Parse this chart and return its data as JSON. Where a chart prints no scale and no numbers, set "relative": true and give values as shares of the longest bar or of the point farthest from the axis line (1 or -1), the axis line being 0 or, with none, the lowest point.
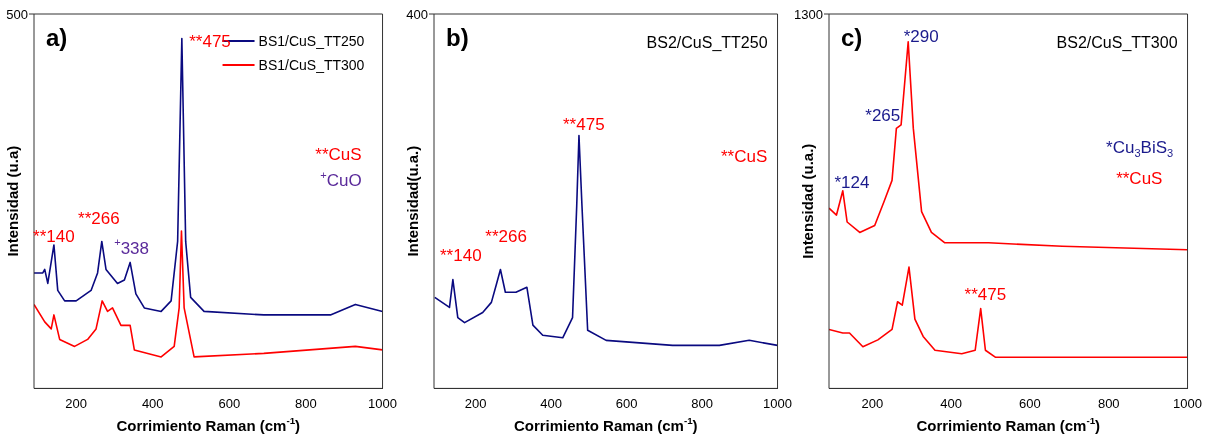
{
  "chart_data": [
    {
      "type": "line",
      "relative": true,
      "xlim": [
        90,
        1000
      ],
      "xticks": [
        200,
        400,
        600,
        800,
        1000
      ],
      "tick_labels": "x",
      "xlabel": "Corrimiento Raman (cm$^{-1}$)",
      "ylabel": "Intensidad (u.a)",
      "legend": "top right",
      "marker": "none",
      "series": [
        {
          "name": "BS1/CuS_TT250",
          "color": "#0a0a80",
          "x": [
            90,
            113,
            118,
            126,
            142,
            152,
            170,
            200,
            239,
            256,
            267,
            278,
            308,
            326,
            341,
            356,
            378,
            422,
            448,
            465,
            476,
            486,
            499,
            534,
            690,
            864,
            929,
            1000
          ],
          "values": [
            0.33,
            0.33,
            0.34,
            0.3,
            0.41,
            0.28,
            0.25,
            0.25,
            0.28,
            0.33,
            0.42,
            0.34,
            0.3,
            0.31,
            0.36,
            0.27,
            0.23,
            0.22,
            0.25,
            0.42,
            1.0,
            0.42,
            0.26,
            0.22,
            0.21,
            0.21,
            0.24,
            0.22
          ]
        },
        {
          "name": "BS1/CuS_TT300",
          "color": "#ff0000",
          "x": [
            90,
            118,
            135,
            142,
            157,
            196,
            230,
            252,
            268,
            282,
            295,
            317,
            341,
            352,
            387,
            422,
            456,
            469,
            475,
            482,
            508,
            690,
            929,
            1000
          ],
          "values": [
            0.24,
            0.19,
            0.17,
            0.21,
            0.14,
            0.12,
            0.14,
            0.17,
            0.25,
            0.22,
            0.23,
            0.18,
            0.18,
            0.11,
            0.1,
            0.09,
            0.12,
            0.23,
            0.45,
            0.23,
            0.09,
            0.1,
            0.12,
            0.11
          ]
        }
      ],
      "annotations": [
        "a)",
        "500",
        "**140",
        "**266",
        "$^{+}$338",
        "**475",
        "**CuS",
        "$^{+}$CuO"
      ]
    },
    {
      "type": "line",
      "relative": true,
      "xlim": [
        90,
        1000
      ],
      "xticks": [
        200,
        400,
        600,
        800,
        1000
      ],
      "tick_labels": "x",
      "xlabel": "Corrimiento Raman (cm$^{-1}$)",
      "ylabel": "Intensidad(u.a.)",
      "subtitle": "BS2/CuS_TT250",
      "marker": "none",
      "series": [
        {
          "color": "#0a0a80",
          "x": [
            92,
            131,
            140,
            153,
            171,
            219,
            242,
            255,
            266,
            279,
            307,
            336,
            352,
            378,
            431,
            457,
            468,
            474,
            482,
            497,
            546,
            722,
            846,
            925,
            1000
          ],
          "values": [
            0.36,
            0.32,
            0.43,
            0.28,
            0.26,
            0.3,
            0.34,
            0.41,
            0.47,
            0.38,
            0.38,
            0.4,
            0.25,
            0.21,
            0.2,
            0.28,
            0.72,
            1.0,
            0.72,
            0.23,
            0.19,
            0.17,
            0.17,
            0.19,
            0.17
          ]
        }
      ],
      "annotations": [
        "b)",
        "400",
        "**140",
        "**266",
        "**475",
        "**CuS"
      ]
    },
    {
      "type": "line",
      "relative": true,
      "xlim": [
        90,
        1000
      ],
      "xticks": [
        200,
        400,
        600,
        800,
        1000
      ],
      "tick_labels": "x",
      "xlabel": "Corrimiento Raman (cm$^{-1}$)",
      "ylabel": "Intensidad (u.a.)",
      "subtitle": "BS2/CuS_TT300",
      "marker": "none",
      "series": [
        {
          "color": "#ff0000",
          "x": [
            90,
            109,
            125,
            136,
            168,
            206,
            230,
            250,
            261,
            273,
            291,
            304,
            325,
            350,
            384,
            495,
            682,
            1000
          ],
          "values": [
            0.52,
            0.5,
            0.57,
            0.48,
            0.45,
            0.47,
            0.54,
            0.6,
            0.75,
            0.76,
            1.0,
            0.75,
            0.51,
            0.45,
            0.42,
            0.42,
            0.41,
            0.4
          ]
        },
        {
          "color": "#ff0000",
          "x": [
            90,
            125,
            142,
            176,
            214,
            250,
            264,
            276,
            293,
            308,
            329,
            359,
            427,
            461,
            475,
            487,
            512,
            1000
          ],
          "values": [
            0.17,
            0.16,
            0.16,
            0.12,
            0.14,
            0.17,
            0.25,
            0.24,
            0.35,
            0.2,
            0.15,
            0.11,
            0.1,
            0.11,
            0.23,
            0.11,
            0.09,
            0.09
          ]
        }
      ],
      "annotations": [
        "c)",
        "1300",
        "*124",
        "*265",
        "*290",
        "**475",
        "*Cu$_{3}$BiS$_{3}$",
        "**CuS"
      ]
    }
  ]
}
